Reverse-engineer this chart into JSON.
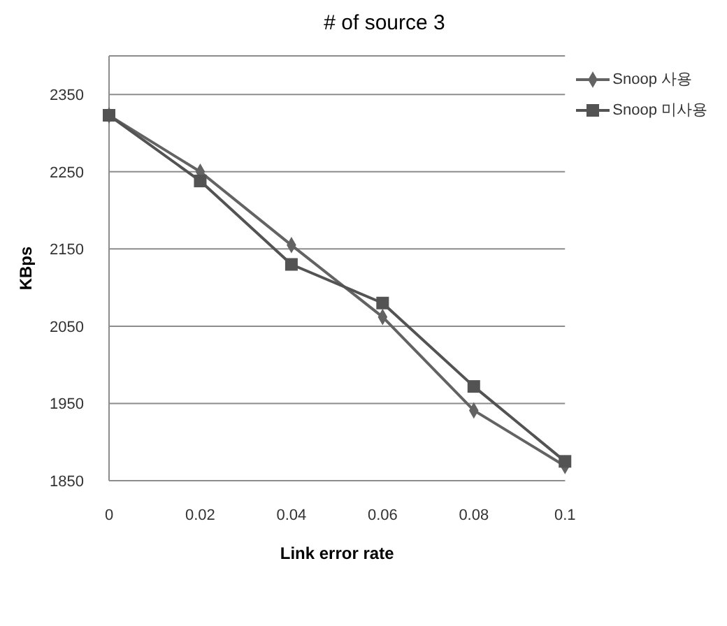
{
  "chart_data": {
    "type": "line",
    "title": "# of source 3",
    "xlabel": "Link error rate",
    "ylabel": "KBps",
    "categories": [
      "0",
      "0.02",
      "0.04",
      "0.06",
      "0.08",
      "0.1"
    ],
    "series": [
      {
        "name": "Snoop 사용",
        "color": "#636363",
        "marker": "diamond",
        "values": [
          2323,
          2250,
          2155,
          2062,
          1941,
          1869
        ]
      },
      {
        "name": "Snoop 미사용",
        "color": "#535353",
        "marker": "square",
        "values": [
          2323,
          2238,
          2130,
          2080,
          1972,
          1875
        ]
      }
    ],
    "ylim": [
      1850,
      2400
    ],
    "yticks": [
      1850,
      1950,
      2050,
      2150,
      2250,
      2350
    ],
    "grid": "y",
    "legend": "top right"
  }
}
